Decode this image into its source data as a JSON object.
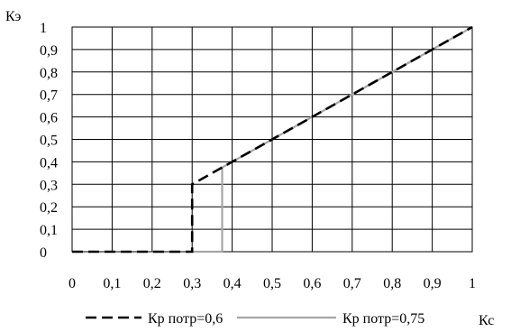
{
  "chart_data": {
    "type": "line",
    "xlabel": "Кс",
    "ylabel": "Кэ",
    "xlim": [
      0,
      1
    ],
    "ylim": [
      0,
      1
    ],
    "grid": true,
    "legend_position": "bottom",
    "x_ticks": [
      "0",
      "0,1",
      "0,2",
      "0,3",
      "0,4",
      "0,5",
      "0,6",
      "0,7",
      "0,8",
      "0,9",
      "1"
    ],
    "y_ticks": [
      "0",
      "0,1",
      "0,2",
      "0,3",
      "0,4",
      "0,5",
      "0,6",
      "0,7",
      "0,8",
      "0,9",
      "1"
    ],
    "series": [
      {
        "name": "Кр потр=0,6",
        "color": "#000000",
        "style": "dashed",
        "x": [
          0,
          0.3,
          0.3,
          0.4,
          1
        ],
        "y": [
          0,
          0,
          0.3,
          0.4,
          1
        ]
      },
      {
        "name": "Кр потр=0,75",
        "color": "#a6a6a6",
        "style": "solid",
        "x": [
          0.3,
          0.375,
          0.375,
          0.4,
          1
        ],
        "y": [
          0,
          0,
          0.375,
          0.4,
          1
        ]
      }
    ]
  }
}
